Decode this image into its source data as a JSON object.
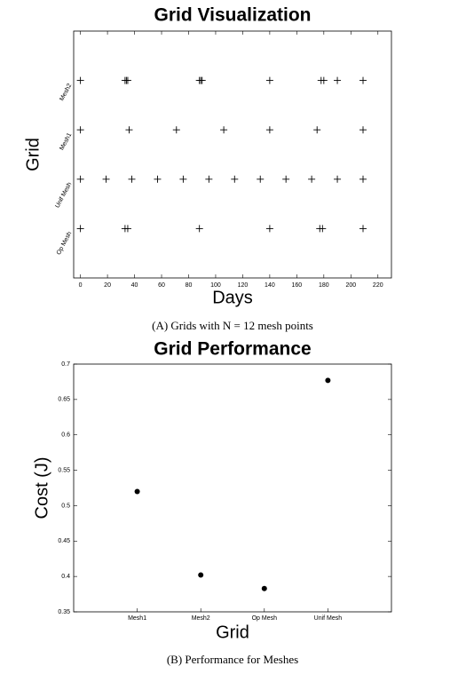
{
  "chart_data": [
    {
      "type": "dotrows",
      "title": "Grid Visualization",
      "xlabel": "Days",
      "ylabel": "Grid",
      "caption": "(A) Grids with N = 12 mesh points",
      "xlim": [
        -5,
        230
      ],
      "xticks": [
        0,
        20,
        40,
        60,
        80,
        100,
        120,
        140,
        160,
        180,
        200,
        220
      ],
      "rows": [
        {
          "label": "Mesh2",
          "x": [
            0,
            33,
            34,
            35,
            88,
            89,
            90,
            140,
            178,
            180,
            190,
            209
          ]
        },
        {
          "label": "Mesh1",
          "x": [
            0,
            36,
            71,
            106,
            140,
            175,
            209
          ]
        },
        {
          "label": "Unif Mesh",
          "x": [
            0,
            19,
            38,
            57,
            76,
            95,
            114,
            133,
            152,
            171,
            190,
            209
          ]
        },
        {
          "label": "Op Mesh",
          "x": [
            0,
            33,
            35,
            88,
            140,
            177,
            179,
            209
          ]
        }
      ],
      "color": "#000000"
    },
    {
      "type": "scatter",
      "title": "Grid Performance",
      "xlabel": "Grid",
      "ylabel": "Cost (J)",
      "caption": "(B) Performance for Meshes",
      "categories": [
        "Mesh1",
        "Mesh2",
        "Op Mesh",
        "Unif Mesh"
      ],
      "values": [
        0.52,
        0.402,
        0.383,
        0.677
      ],
      "ylim": [
        0.35,
        0.7
      ],
      "yticks": [
        0.35,
        0.4,
        0.45,
        0.5,
        0.55,
        0.6,
        0.65,
        0.7
      ],
      "color": "#000000"
    }
  ]
}
